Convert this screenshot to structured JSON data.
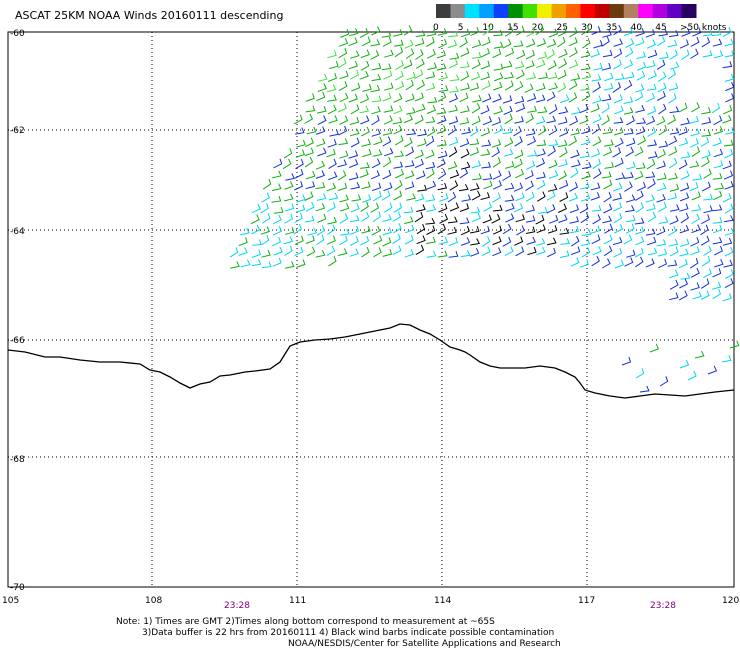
{
  "title": "ASCAT 25KM NOAA Winds 20160111 descending",
  "legend": {
    "labels": [
      "0",
      "5",
      "10",
      "15",
      "20",
      "25",
      "30",
      "35",
      "40",
      "45",
      ">50 knots"
    ],
    "colors": [
      "#3c3c3c",
      "#8c8c8c",
      "#00e0ff",
      "#00a0ff",
      "#1040ff",
      "#009000",
      "#40e000",
      "#f0f000",
      "#f0a000",
      "#ff6000",
      "#ff0000",
      "#c00000",
      "#6a3a10",
      "#b08060",
      "#ff00ff",
      "#b000e0",
      "#6000c0",
      "#2a0060"
    ]
  },
  "axes": {
    "lat_labels": [
      "-60",
      "-62",
      "-64",
      "-66",
      "-68",
      "-70"
    ],
    "lon_labels": [
      "105",
      "108",
      "111",
      "114",
      "117",
      "120"
    ]
  },
  "pass_times": [
    "23:28",
    "23:28"
  ],
  "notes": {
    "line1": "Note: 1) Times are GMT 2)Times along bottom correspond to measurement at ~65S",
    "line2": "3)Data buffer is 22 hrs from 20160111 4) Black wind barbs indicate possible contamination",
    "line3": "NOAA/NESDIS/Center for Satellite Applications and Research"
  },
  "map": {
    "lon_range": [
      105,
      120
    ],
    "lat_range": [
      -60,
      -70
    ],
    "coastline": "Antarctic coast",
    "barb_colors": {
      "low": "#00d8f0",
      "moderate": "#1030e0",
      "fresh": "#10b010",
      "bright": "#40e040",
      "contaminated": "#000000"
    }
  }
}
